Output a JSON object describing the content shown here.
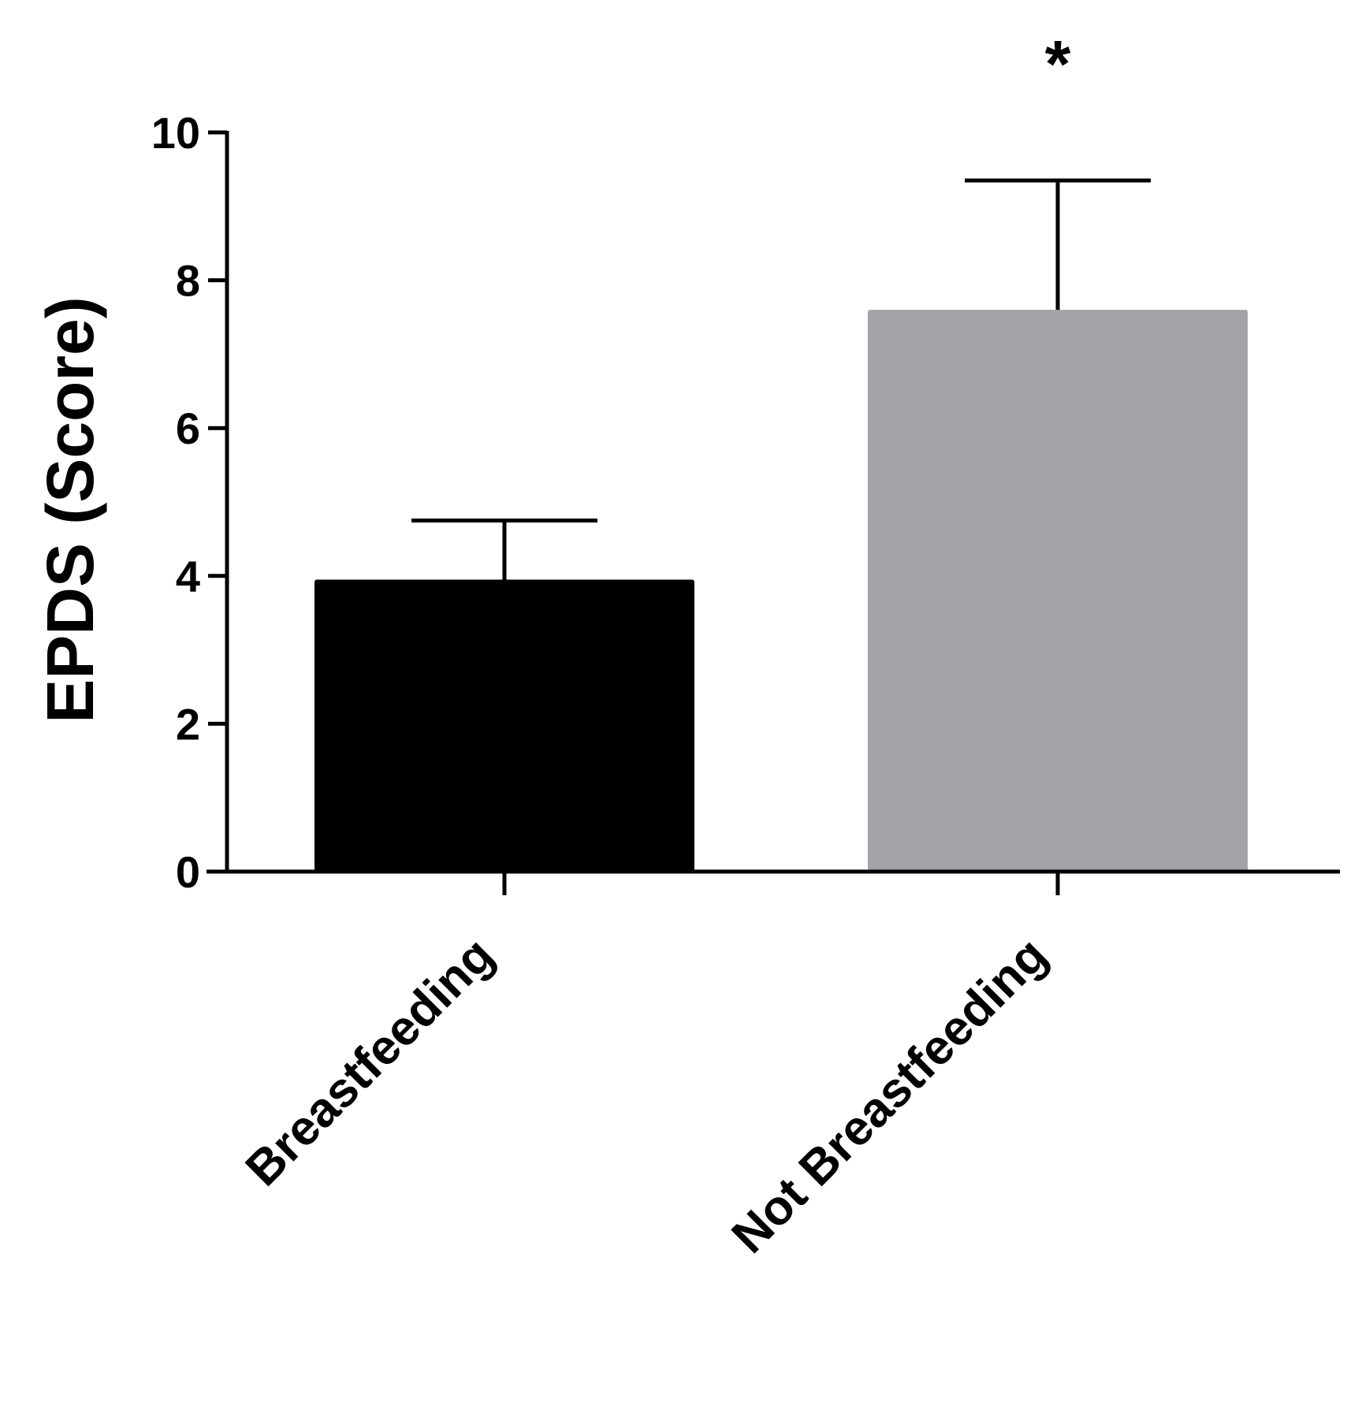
{
  "chart_data": {
    "type": "bar",
    "categories": [
      "Breastfeeding",
      "Not Breastfeeding"
    ],
    "values": [
      3.95,
      7.6
    ],
    "error_upper": [
      4.75,
      9.35
    ],
    "bar_colors": [
      "#000000",
      "#a4a3a8"
    ],
    "ylabel": "EPDS (Score)",
    "ylim": [
      0,
      10
    ],
    "yticks": [
      "0",
      "2",
      "4",
      "6",
      "8",
      "10"
    ],
    "significance_marker": "*",
    "significance_category": "Not Breastfeeding",
    "grid": false,
    "legend": "none"
  }
}
